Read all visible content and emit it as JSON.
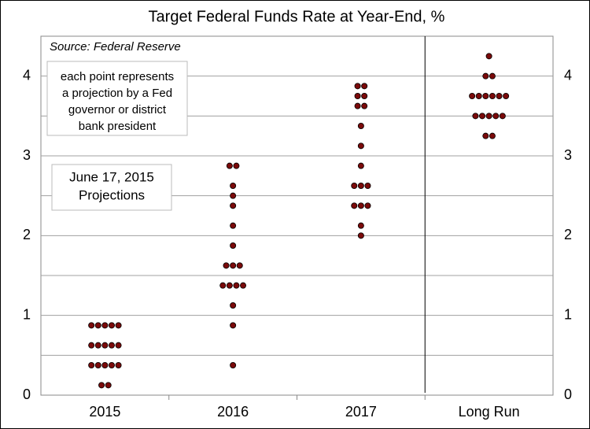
{
  "chart_data": {
    "type": "dot",
    "title": "Target Federal Funds Rate at Year-End, %",
    "source": "Source: Federal Reserve",
    "annotations": [
      {
        "lines": [
          "each point represents",
          "a projection by a Fed",
          "governor or district",
          "bank president"
        ]
      },
      {
        "lines": [
          "June 17, 2015",
          "Projections"
        ]
      }
    ],
    "categories": [
      "2015",
      "2016",
      "2017",
      "Long Run"
    ],
    "values": [
      [
        0.125,
        0.125,
        0.375,
        0.375,
        0.375,
        0.375,
        0.375,
        0.625,
        0.625,
        0.625,
        0.625,
        0.625,
        0.875,
        0.875,
        0.875,
        0.875,
        0.875
      ],
      [
        0.375,
        0.875,
        1.125,
        1.375,
        1.375,
        1.375,
        1.375,
        1.625,
        1.625,
        1.625,
        1.875,
        2.125,
        2.375,
        2.5,
        2.625,
        2.875,
        2.875
      ],
      [
        2.0,
        2.125,
        2.375,
        2.375,
        2.375,
        2.625,
        2.625,
        2.625,
        2.875,
        3.125,
        3.375,
        3.625,
        3.625,
        3.75,
        3.75,
        3.875,
        3.875
      ],
      [
        3.25,
        3.25,
        3.5,
        3.5,
        3.5,
        3.5,
        3.5,
        3.75,
        3.75,
        3.75,
        3.75,
        3.75,
        3.75,
        4.0,
        4.0,
        4.25
      ]
    ],
    "color": "#7a0a0a",
    "ylim": [
      0,
      4.5
    ],
    "yticks": [
      0,
      1,
      2,
      3,
      4
    ],
    "gridlines": [
      0.5,
      1,
      1.5,
      2,
      2.5,
      3,
      3.5,
      4
    ],
    "grid": true
  }
}
